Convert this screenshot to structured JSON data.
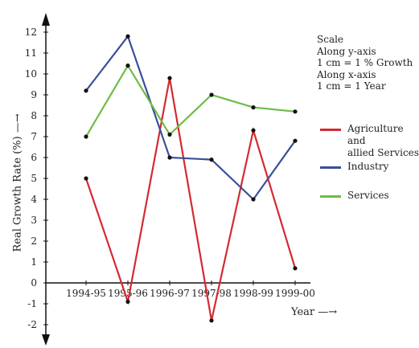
{
  "chart_data": {
    "type": "line",
    "categories": [
      "1994-95",
      "1995-96",
      "1996-97",
      "1997-98",
      "1998-99",
      "1999-00"
    ],
    "series": [
      {
        "name": "Agriculture and\nallied Services",
        "color": "#d42a30",
        "values": [
          5.0,
          -0.9,
          9.8,
          -1.8,
          7.3,
          0.7
        ]
      },
      {
        "name": "Industry",
        "color": "#3a4f9a",
        "values": [
          9.2,
          11.8,
          6.0,
          5.9,
          4.0,
          6.8
        ]
      },
      {
        "name": "Services",
        "color": "#6cbd45",
        "values": [
          7.0,
          10.4,
          7.1,
          9.0,
          8.4,
          8.2
        ]
      }
    ],
    "ylim": [
      -2,
      12
    ],
    "yticks": [
      "-2",
      "-1",
      "0",
      "1",
      "2",
      "3",
      "4",
      "5",
      "6",
      "7",
      "8",
      "9",
      "10",
      "11",
      "12"
    ],
    "ylabel": "Real Growth Rate  (%)",
    "xlabel": "Year",
    "scale_note": [
      "Scale",
      "Along y-axis",
      "1 cm = 1 % Growth",
      "Along x-axis",
      "1 cm = 1 Year"
    ],
    "legend_position": "right"
  }
}
